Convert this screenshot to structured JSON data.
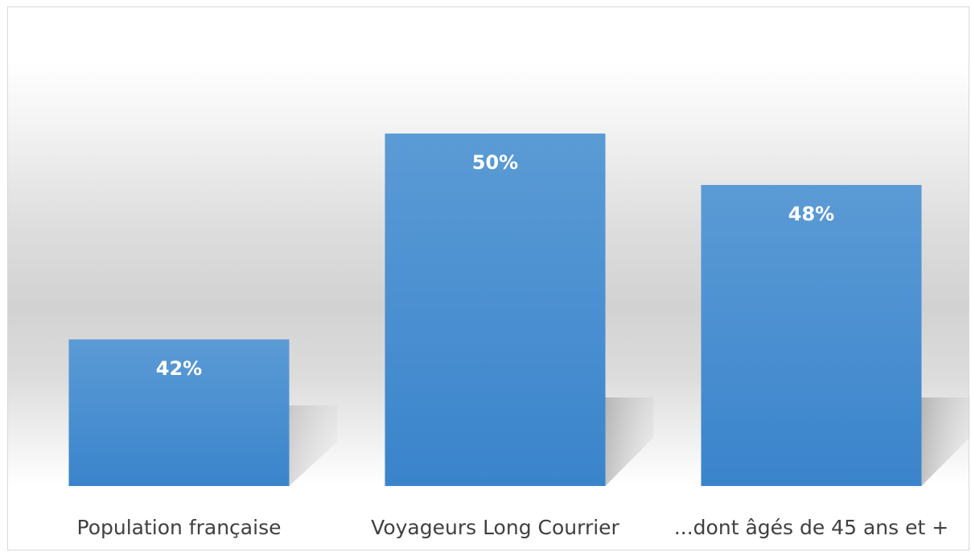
{
  "chart_data": {
    "type": "bar",
    "categories": [
      "Population française",
      "Voyageurs Long Courrier",
      "...dont âgés de 45 ans et +"
    ],
    "values": [
      42,
      50,
      48
    ],
    "data_labels": [
      "42%",
      "50%",
      "48%"
    ],
    "title": "",
    "xlabel": "",
    "ylabel": "",
    "ylim": [
      36.3,
      51.5
    ],
    "grid": false,
    "legend": "none",
    "colors": {
      "bar_top": "#5b9bd5",
      "bar_bottom": "#3a84cc",
      "label_text": "#ffffff",
      "category_text": "#404040"
    }
  }
}
